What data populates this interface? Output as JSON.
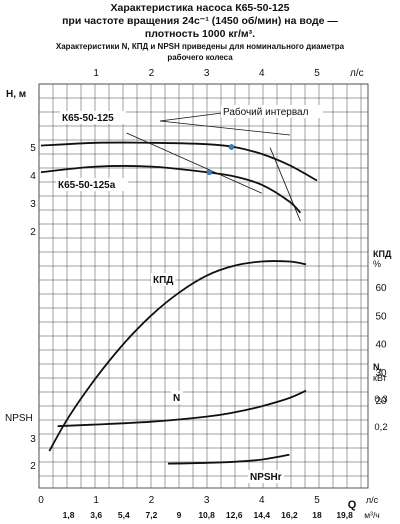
{
  "title": {
    "line1": "Характеристика насоса К65-50-125",
    "line2": "при частоте вращения 24с⁻¹ (1450 об/мин) на воде —",
    "line3": "плотность 1000 кг/м³.",
    "note_line1": "Характеристики N, КПД и NPSH приведены для номинального диаметра",
    "note_line2": "рабочего колеса"
  },
  "chart_data": {
    "type": "line",
    "grid": true,
    "top_axis": {
      "label": "л/с",
      "ticks": [
        1,
        2,
        3,
        4,
        5
      ],
      "range": [
        0,
        5.5
      ]
    },
    "bottom_axis": {
      "label_q": "Q",
      "label_ls": "л/с",
      "label_m3h": "м³/ч",
      "ticks_ls": [
        0,
        1,
        2,
        3,
        4,
        5
      ],
      "ticks_m3h": [
        "1,8",
        "3,6",
        "5,4",
        "7,2",
        "9",
        "10,8",
        "12,6",
        "14,4",
        "16,2",
        "18",
        "19,8"
      ]
    },
    "head_axis": {
      "label": "H, м",
      "ticks": [
        2,
        3,
        4,
        5
      ],
      "range": [
        1.3,
        5.8
      ]
    },
    "eff_axis": {
      "label_top": "КПД",
      "label_unit": "%",
      "ticks": [
        20,
        30,
        40,
        50,
        60
      ]
    },
    "power_axis": {
      "label_top": "N,",
      "label_unit": "кВт",
      "ticks": [
        "0,2",
        "0,3"
      ]
    },
    "npsh_axis": {
      "label": "NPSH",
      "ticks": [
        2,
        3
      ]
    },
    "series": [
      {
        "name": "К65-50-125",
        "kind": "head",
        "x": [
          0,
          1,
          2,
          3,
          3.5,
          4,
          4.5,
          5.0
        ],
        "y": [
          5.05,
          5.15,
          5.15,
          5.1,
          5.0,
          4.75,
          4.35,
          3.8
        ]
      },
      {
        "name": "К65-50-125а",
        "kind": "head",
        "x": [
          0,
          1,
          2,
          3,
          3.5,
          4,
          4.5,
          4.7
        ],
        "y": [
          4.1,
          4.3,
          4.3,
          4.1,
          3.95,
          3.65,
          3.05,
          2.65
        ]
      },
      {
        "name": "КПД",
        "kind": "efficiency",
        "x": [
          0.15,
          0.5,
          1,
          1.5,
          2,
          2.5,
          3,
          3.5,
          4,
          4.5,
          4.8
        ],
        "y": [
          2,
          14,
          28,
          40,
          50,
          58,
          64,
          67.5,
          69,
          69,
          68
        ]
      },
      {
        "name": "N",
        "kind": "power",
        "x": [
          0.3,
          1,
          2,
          3,
          3.5,
          4,
          4.5,
          4.8
        ],
        "y": [
          0.2,
          0.206,
          0.216,
          0.234,
          0.249,
          0.271,
          0.3,
          0.326
        ]
      },
      {
        "name": "NPSHr",
        "kind": "npsh",
        "x": [
          2.3,
          3,
          3.5,
          4,
          4.5
        ],
        "y": [
          2.05,
          2.08,
          2.12,
          2.2,
          2.38
        ]
      }
    ],
    "working_interval": {
      "label": "Рабочий интервал",
      "q_min_ls": 3.45,
      "q_max_ls": 4.25,
      "points": [
        {
          "curve": "К65-50-125",
          "x": 3.45,
          "y": 5.0
        },
        {
          "curve": "К65-50-125а",
          "x": 3.05,
          "y": 4.1
        }
      ]
    }
  },
  "colors": {
    "grid": "#444444",
    "curve": "#111111",
    "point": "#3d7fc4"
  }
}
